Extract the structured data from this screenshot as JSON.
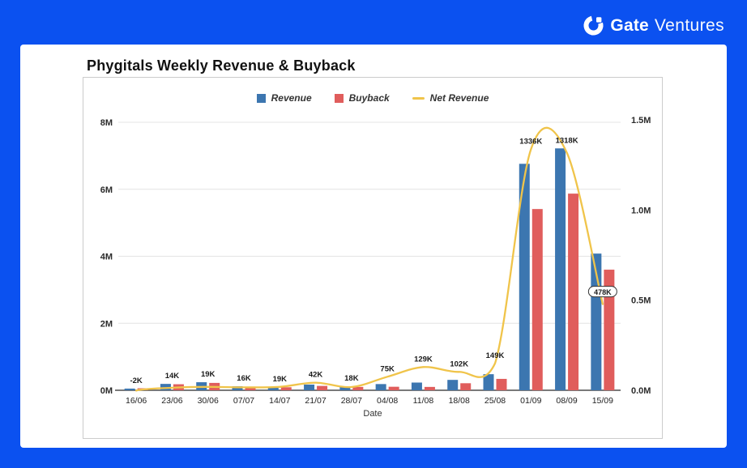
{
  "header": {
    "brand_bold": "Gate",
    "brand_light": "Ventures"
  },
  "chart": {
    "title": "Phygitals Weekly Revenue & Buyback"
  },
  "chart_data": {
    "type": "bar",
    "title": "Phygitals Weekly Revenue & Buyback",
    "xlabel": "Date",
    "categories": [
      "16/06",
      "23/06",
      "30/06",
      "07/07",
      "14/07",
      "21/07",
      "28/07",
      "04/08",
      "11/08",
      "18/08",
      "25/08",
      "01/09",
      "08/09",
      "15/09"
    ],
    "series": [
      {
        "name": "Revenue",
        "type": "bar",
        "axis": "left",
        "color": "#3c76b0",
        "values_M": [
          0.05,
          0.19,
          0.24,
          0.12,
          0.1,
          0.17,
          0.12,
          0.185,
          0.23,
          0.31,
          0.48,
          6.76,
          7.22,
          4.08
        ]
      },
      {
        "name": "Buyback",
        "type": "bar",
        "axis": "left",
        "color": "#e05d5c",
        "values_M": [
          0.06,
          0.18,
          0.22,
          0.11,
          0.09,
          0.13,
          0.1,
          0.105,
          0.1,
          0.21,
          0.34,
          5.41,
          5.87,
          3.6
        ]
      },
      {
        "name": "Net Revenue",
        "type": "line",
        "axis": "right",
        "color": "#f0c44a",
        "values_K": [
          -2,
          14,
          19,
          16,
          19,
          42,
          18,
          75,
          129,
          102,
          149,
          1336,
          1318,
          478
        ]
      }
    ],
    "point_labels": [
      "-2K",
      "14K",
      "19K",
      "16K",
      "19K",
      "42K",
      "18K",
      "75K",
      "129K",
      "102K",
      "149K",
      "1336K",
      "1318K",
      "478K"
    ],
    "boxed_label_index": 13,
    "left_axis": {
      "title": "",
      "ticks": [
        "0M",
        "2M",
        "4M",
        "6M",
        "8M"
      ],
      "tick_values": [
        0,
        2,
        4,
        6,
        8
      ],
      "max_M": 8
    },
    "right_axis": {
      "title": "",
      "ticks": [
        "0.0M",
        "0.5M",
        "1.0M",
        "1.5M"
      ],
      "tick_values": [
        0,
        0.5,
        1.0,
        1.5
      ],
      "max_M": 1.5
    },
    "legend_position": "top-center",
    "grid": "horizontal-left-axis",
    "colors": {
      "background": "#0b51f0",
      "card": "#ffffff",
      "grid_line": "#e4e4e4",
      "axis_line": "#4d4d4d",
      "text": "#222222"
    }
  }
}
